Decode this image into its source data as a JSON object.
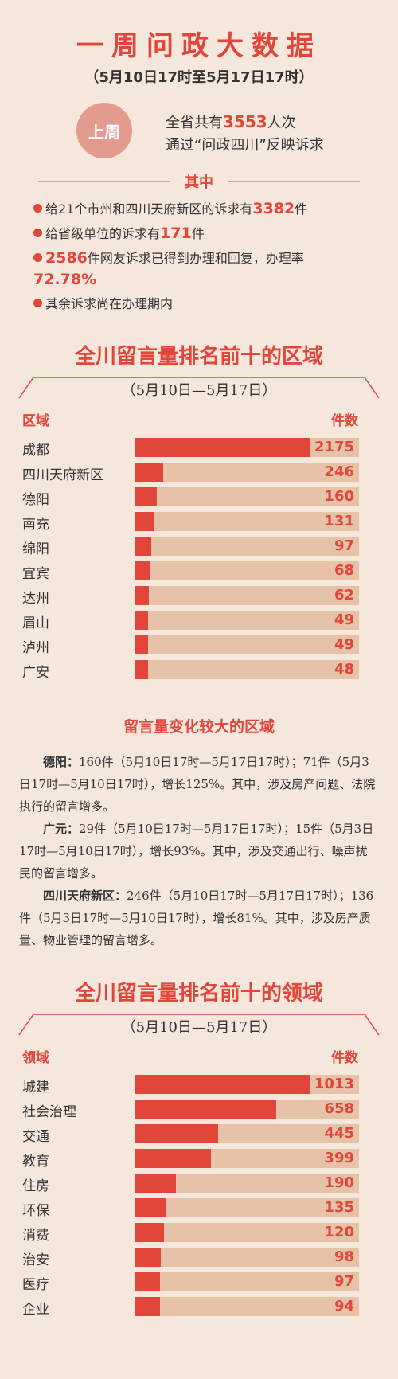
{
  "header": {
    "title": "一周问政大数据",
    "subtitle": "（5月10日17时至5月17日17时）"
  },
  "summary": {
    "badge": "上周",
    "line1_pre": "全省共有",
    "line1_num": "3553",
    "line1_post": "人次",
    "line2": "通过“问政四川”反映诉求"
  },
  "separator": "其中",
  "bullets": [
    {
      "pre": "给21个市州和四川天府新区的诉求有",
      "num": "3382",
      "post": "件"
    },
    {
      "pre": "给省级单位的诉求有",
      "num": "171",
      "post": "件"
    },
    {
      "pre": "",
      "num": "2586",
      "post": "件网友诉求已得到办理和回复，办理率",
      "num2": "72.78%"
    },
    {
      "pre": "其余诉求尚在办理期内",
      "num": "",
      "post": ""
    }
  ],
  "colors": {
    "accent": "#e2453a",
    "track": "#e6c3a8",
    "background": "#f6e7dd"
  },
  "chart_data": [
    {
      "type": "bar",
      "title": "全川留言量排名前十的区域",
      "subtitle": "（5月10日—5月17日）",
      "xlabel": "区域",
      "ylabel": "件数",
      "categories": [
        "成都",
        "四川天府新区",
        "德阳",
        "南充",
        "绵阳",
        "宜宾",
        "达州",
        "眉山",
        "泸州",
        "广安"
      ],
      "values": [
        2175,
        246,
        160,
        131,
        97,
        68,
        62,
        49,
        49,
        48
      ]
    },
    {
      "type": "bar",
      "title": "全川留言量排名前十的领域",
      "subtitle": "（5月10日—5月17日）",
      "xlabel": "领域",
      "ylabel": "件数",
      "categories": [
        "城建",
        "社会治理",
        "交通",
        "教育",
        "住房",
        "环保",
        "消费",
        "治安",
        "医疗",
        "企业"
      ],
      "values": [
        1013,
        658,
        445,
        399,
        190,
        135,
        120,
        98,
        97,
        94
      ]
    }
  ],
  "changes": {
    "title": "留言量变化较大的区域",
    "paras": [
      {
        "name": "德阳：",
        "text": "160件（5月10日17时—5月17日17时）；71件（5月3日17时—5月10日17时），增长125%。其中，涉及房产问题、法院执行的留言增多。"
      },
      {
        "name": "广元：",
        "text": "29件（5月10日17时—5月17日17时）；15件（5月3日17时—5月10日17时），增长93%。其中，涉及交通出行、噪声扰民的留言增多。"
      },
      {
        "name": "四川天府新区：",
        "text": "246件（5月10日17时—5月17日17时）；136件（5月3日17时—5月10日17时），增长81%。其中，涉及房产质量、物业管理的留言增多。"
      }
    ]
  }
}
